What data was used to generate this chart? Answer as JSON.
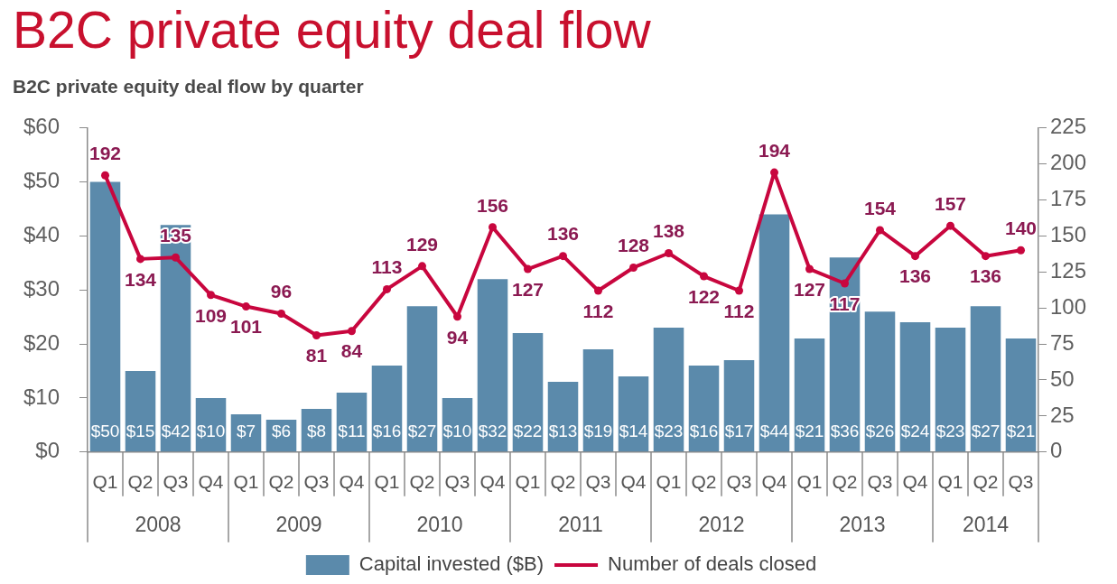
{
  "chart_data": {
    "type": "bar",
    "title": "B2C private equity deal flow",
    "subtitle": "B2C private equity deal flow by quarter",
    "categories": [
      "Q1",
      "Q2",
      "Q3",
      "Q4",
      "Q1",
      "Q2",
      "Q3",
      "Q4",
      "Q1",
      "Q2",
      "Q3",
      "Q4",
      "Q1",
      "Q2",
      "Q3",
      "Q4",
      "Q1",
      "Q2",
      "Q3",
      "Q4",
      "Q1",
      "Q2",
      "Q3",
      "Q4",
      "Q1",
      "Q2",
      "Q3"
    ],
    "series": [
      {
        "name": "Capital invested ($B)",
        "color": "#5b8aab",
        "values": [
          50,
          15,
          42,
          10,
          7,
          6,
          8,
          11,
          16,
          27,
          10,
          32,
          22,
          13,
          19,
          14,
          23,
          16,
          17,
          44,
          21,
          36,
          26,
          24,
          23,
          27,
          21
        ],
        "value_labels": [
          "$50",
          "$15",
          "$42",
          "$10",
          "$7",
          "$6",
          "$8",
          "$11",
          "$16",
          "$27",
          "$10",
          "$32",
          "$22",
          "$13",
          "$19",
          "$14",
          "$23",
          "$16",
          "$17",
          "$44",
          "$21",
          "$36",
          "$26",
          "$24",
          "$23",
          "$27",
          "$21"
        ]
      },
      {
        "name": "Number of deals closed",
        "type": "line",
        "axis": "y2",
        "color": "#c8063e",
        "values": [
          192,
          134,
          135,
          109,
          101,
          96,
          81,
          84,
          113,
          129,
          94,
          156,
          127,
          136,
          112,
          128,
          138,
          122,
          112,
          194,
          127,
          117,
          154,
          136,
          157,
          136,
          140
        ],
        "value_labels": [
          "192",
          "134",
          "135",
          "109",
          "101",
          "96",
          "81",
          "84",
          "113",
          "129",
          "94",
          "156",
          "127",
          "136",
          "112",
          "128",
          "138",
          "122",
          "112",
          "194",
          "127",
          "117",
          "154",
          "136",
          "157",
          "136",
          "140"
        ]
      }
    ],
    "ylim": [
      0,
      60
    ],
    "yticks": [
      {
        "value": 0,
        "label": "$0"
      },
      {
        "value": 10,
        "label": "$10"
      },
      {
        "value": 20,
        "label": "$20"
      },
      {
        "value": 30,
        "label": "$30"
      },
      {
        "value": 40,
        "label": "$40"
      },
      {
        "value": 50,
        "label": "$50"
      },
      {
        "value": 60,
        "label": "$60"
      }
    ],
    "y2lim": [
      0,
      225
    ],
    "y2ticks": [
      0,
      25,
      50,
      75,
      100,
      125,
      150,
      175,
      200,
      225
    ],
    "annotations": [
      "2008",
      "2009",
      "2010",
      "2011",
      "2012",
      "2013",
      "2014"
    ],
    "legend": "bottom",
    "marker": "circle"
  }
}
